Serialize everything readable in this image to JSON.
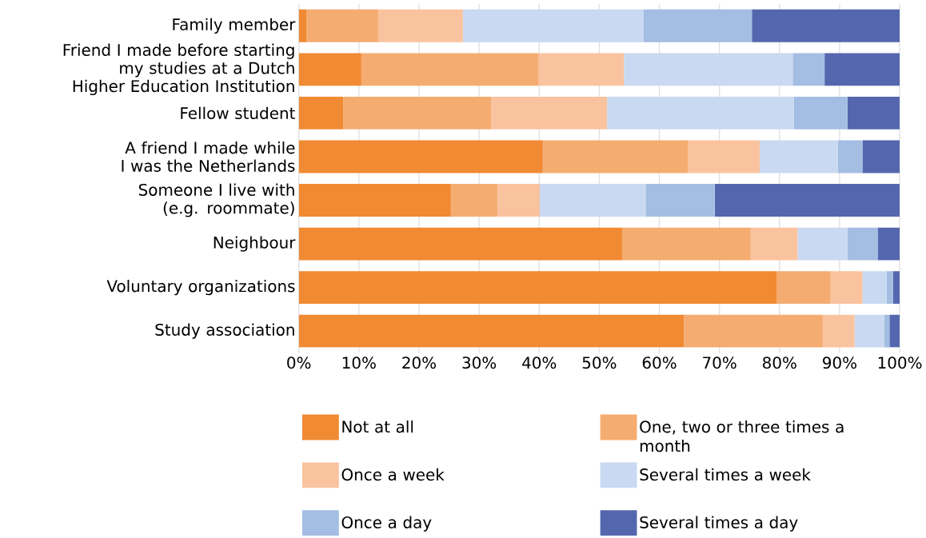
{
  "chart_data": {
    "type": "bar",
    "orientation": "horizontal",
    "stacked": true,
    "categories": [
      "Family member",
      "Friend I made before starting my studies at a Dutch Higher Education Institution",
      "Fellow student",
      "A friend I made while I was the Netherlands",
      "Someone I live with (e.g. roommate)",
      "Neighbour",
      "Voluntary organizations",
      "Study association"
    ],
    "series": [
      {
        "name": "Not at all",
        "color": "#f08a33",
        "values": [
          1.3,
          10.4,
          7.4,
          40.6,
          25.3,
          53.8,
          79.5,
          64.1
        ]
      },
      {
        "name": "One, two or three times a month",
        "color": "#f5ac70",
        "values": [
          11.9,
          29.5,
          24.6,
          24.2,
          7.8,
          21.4,
          9.0,
          23.1
        ]
      },
      {
        "name": "Once a week",
        "color": "#fac39f",
        "values": [
          14.1,
          14.2,
          19.3,
          11.9,
          7.0,
          7.8,
          5.3,
          5.3
        ]
      },
      {
        "name": "Several times a week",
        "color": "#c9d9f1",
        "values": [
          30.1,
          28.1,
          31.1,
          13.0,
          17.7,
          8.3,
          4.0,
          4.9
        ]
      },
      {
        "name": "Once a day",
        "color": "#a4bde2",
        "values": [
          18.0,
          5.3,
          8.9,
          4.1,
          11.4,
          5.1,
          1.1,
          0.9
        ]
      },
      {
        "name": "Several times a day",
        "color": "#5467ae",
        "values": [
          24.6,
          12.5,
          8.7,
          6.2,
          30.8,
          3.6,
          1.1,
          1.7
        ]
      }
    ],
    "xlim": [
      0,
      100
    ],
    "xticks": [
      {
        "value": 0,
        "label": "0%"
      },
      {
        "value": 10,
        "label": "10%"
      },
      {
        "value": 20,
        "label": "20%"
      },
      {
        "value": 30,
        "label": "30%"
      },
      {
        "value": 40,
        "label": "40%"
      },
      {
        "value": 50,
        "label": "50%"
      },
      {
        "value": 60,
        "label": "60%"
      },
      {
        "value": 70,
        "label": "70%"
      },
      {
        "value": 80,
        "label": "80%"
      },
      {
        "value": 90,
        "label": "90%"
      },
      {
        "value": 100,
        "label": "100%"
      }
    ],
    "grid": "x",
    "legend": "bottom"
  }
}
